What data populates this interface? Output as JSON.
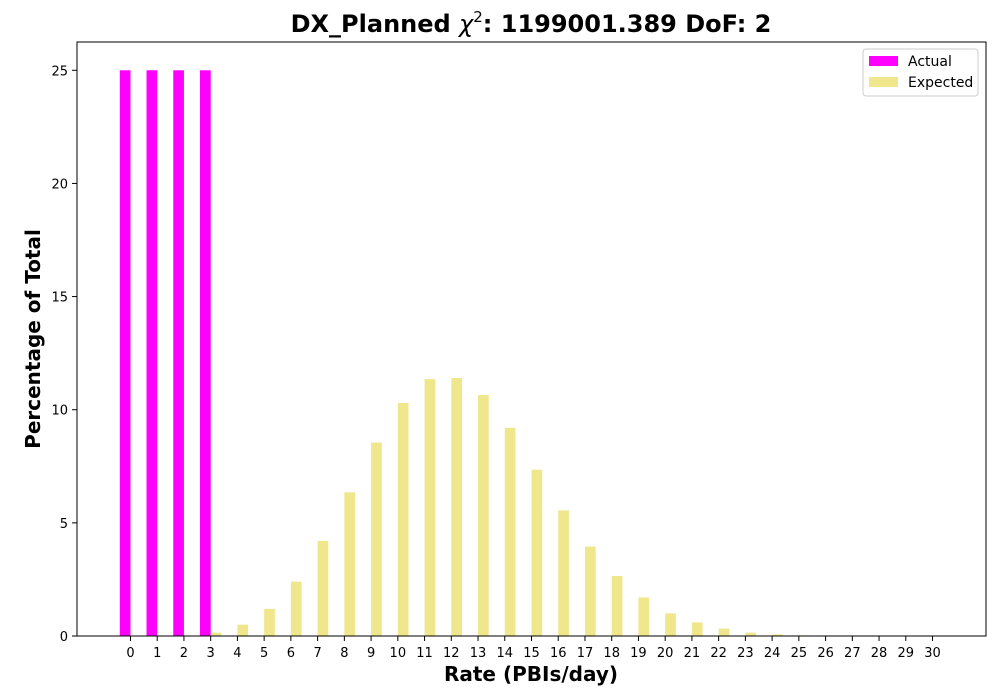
{
  "chart_data": {
    "type": "bar",
    "title_prefix": "DX_Planned ",
    "title_chi": "χ",
    "title_sup": "2",
    "title_suffix": ": 1199001.389 DoF: 2",
    "xlabel": "Rate (PBIs/day)",
    "ylabel": "Percentage of Total",
    "ylim": [
      0,
      26.25
    ],
    "xlim": [
      -2,
      32
    ],
    "yticks": [
      0,
      5,
      10,
      15,
      20,
      25
    ],
    "categories": [
      0,
      1,
      2,
      3,
      4,
      5,
      6,
      7,
      8,
      9,
      10,
      11,
      12,
      13,
      14,
      15,
      16,
      17,
      18,
      19,
      20,
      21,
      22,
      23,
      24,
      25,
      26,
      27,
      28,
      29,
      30
    ],
    "legend_position": "top-right",
    "grid": false,
    "series": [
      {
        "name": "Actual",
        "color": "#ff00ff",
        "offset": -0.2,
        "values": [
          25,
          25,
          25,
          25,
          0,
          0,
          0,
          0,
          0,
          0,
          0,
          0,
          0,
          0,
          0,
          0,
          0,
          0,
          0,
          0,
          0,
          0,
          0,
          0,
          0,
          0,
          0,
          0,
          0,
          0,
          0
        ]
      },
      {
        "name": "Expected",
        "color": "#f0e68c",
        "offset": 0.2,
        "values": [
          0,
          0,
          0,
          0.15,
          0.5,
          1.2,
          2.4,
          4.2,
          6.35,
          8.55,
          10.3,
          11.35,
          11.4,
          10.65,
          9.2,
          7.35,
          5.55,
          3.95,
          2.65,
          1.7,
          1.0,
          0.6,
          0.33,
          0.15,
          0.07,
          0.03,
          0.02,
          0.01,
          0,
          0,
          0
        ]
      }
    ]
  }
}
